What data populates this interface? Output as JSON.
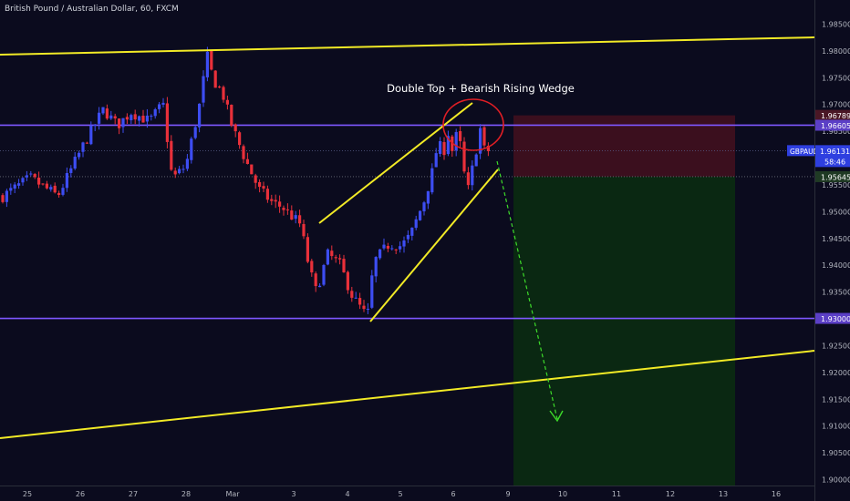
{
  "header": {
    "symbol_title": "British Pound / Australian Dollar, 60, FXCM"
  },
  "colors": {
    "background": "#0b0b1e",
    "candle_up": "#3d4df2",
    "candle_down": "#e8303a",
    "trendline": "#f2ea26",
    "horizontal_level": "#7e57ff",
    "projection_arrow": "#3ddc2a",
    "pattern_circle": "#e01e25",
    "stop_zone": "#3b0f1e",
    "target_zone": "#0a2812",
    "price_badge": "#2e3fe0",
    "level_badge": "#5b3fc6",
    "axis_text": "#b2b5be"
  },
  "chart_data": {
    "type": "candlestick",
    "title": "British Pound / Australian Dollar, 60, FXCM",
    "symbol": "GBPAUD",
    "timeframe": "60",
    "x_tick_labels": [
      "25",
      "26",
      "27",
      "28",
      "Mar",
      "3",
      "4",
      "5",
      "6",
      "9",
      "10",
      "11",
      "12",
      "13",
      "16"
    ],
    "y_tick_labels": [
      "1.98500",
      "1.98000",
      "1.97500",
      "1.97000",
      "1.96500",
      "1.96000",
      "1.95500",
      "1.95000",
      "1.94500",
      "1.94000",
      "1.93500",
      "1.93000",
      "1.92500",
      "1.92000",
      "1.91500",
      "1.91000",
      "1.90500",
      "1.90000"
    ],
    "ylim": [
      1.8995,
      1.9877
    ],
    "price_labels": [
      {
        "name": "stop",
        "text": "1.96789",
        "value": 1.96789
      },
      {
        "name": "resistance",
        "text": "1.96605",
        "value": 1.96605
      },
      {
        "name": "entry",
        "text": "1.95645",
        "value": 1.95645
      },
      {
        "name": "support",
        "text": "1.93000",
        "value": 1.93
      }
    ],
    "current_price": {
      "symbol": "GBPAUD",
      "value_text": "1.96131",
      "value": 1.96131,
      "countdown": "58:46"
    },
    "horizontal_levels": [
      1.96605,
      1.93
    ],
    "annotation": "Double Top + Bearish Rising Wedge",
    "trade": {
      "entry": 1.95645,
      "stop": 1.96789,
      "target": 1.9,
      "direction": "short"
    },
    "price_path": [
      [
        0,
        1.9528
      ],
      [
        3,
        1.9562
      ],
      [
        6,
        1.9528
      ],
      [
        9,
        1.963
      ],
      [
        11,
        1.969
      ],
      [
        12.5,
        1.966
      ],
      [
        14,
        1.9685
      ],
      [
        16,
        1.9668
      ],
      [
        17.5,
        1.97
      ],
      [
        18.5,
        1.956
      ],
      [
        20,
        1.9585
      ],
      [
        21.5,
        1.97
      ],
      [
        22.3,
        1.979
      ],
      [
        23,
        1.9745
      ],
      [
        24,
        1.972
      ],
      [
        25,
        1.966
      ],
      [
        26.5,
        1.9595
      ],
      [
        28,
        1.954
      ],
      [
        29.5,
        1.9515
      ],
      [
        30.5,
        1.9508
      ],
      [
        32.5,
        1.9475
      ],
      [
        33.5,
        1.939
      ],
      [
        34.2,
        1.935
      ],
      [
        35.5,
        1.942
      ],
      [
        36.8,
        1.94
      ],
      [
        38.2,
        1.934
      ],
      [
        39.8,
        1.9302
      ],
      [
        40.5,
        1.9405
      ],
      [
        42.2,
        1.944
      ],
      [
        43.5,
        1.9435
      ],
      [
        44.5,
        1.9455
      ],
      [
        46,
        1.952
      ],
      [
        47,
        1.958
      ],
      [
        47.5,
        1.963
      ],
      [
        48.1,
        1.9605
      ],
      [
        48.5,
        1.9655
      ],
      [
        49.1,
        1.961
      ],
      [
        49.7,
        1.9655
      ],
      [
        50.3,
        1.9575
      ],
      [
        50.8,
        1.954
      ],
      [
        51.5,
        1.96
      ],
      [
        52.2,
        1.966
      ],
      [
        52.6,
        1.961
      ],
      [
        53.0,
        1.9613
      ]
    ]
  }
}
